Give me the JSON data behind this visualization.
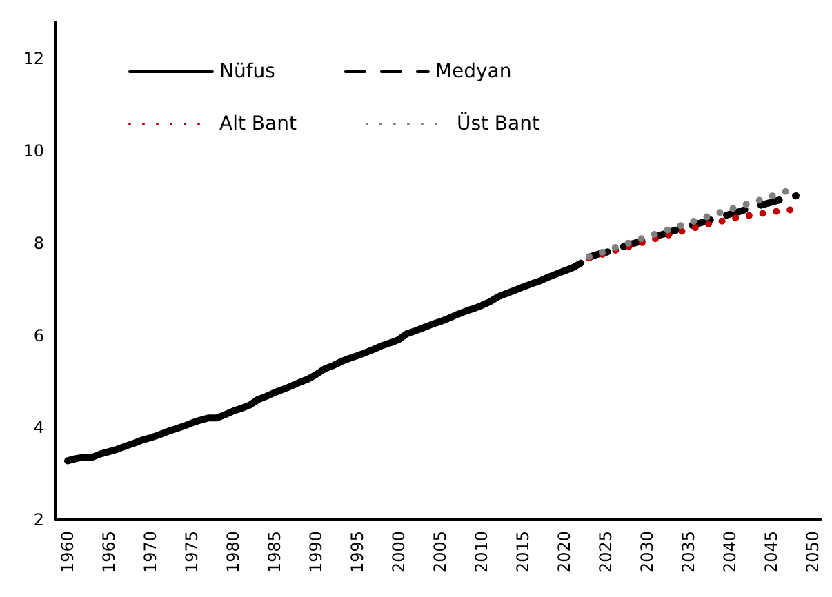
{
  "chart_data": {
    "type": "line",
    "xlim": [
      1958.5,
      2051
    ],
    "xticks": [
      1960,
      1965,
      1970,
      1975,
      1980,
      1985,
      1990,
      1995,
      2000,
      2005,
      2010,
      2015,
      2020,
      2025,
      2030,
      2035,
      2040,
      2045,
      2050
    ],
    "ylim": [
      2,
      12.8
    ],
    "yticks": [
      2,
      4,
      6,
      8,
      10,
      12
    ],
    "grid": false,
    "legend": "top left",
    "marker": "none",
    "series": [
      {
        "name": "Nüfus",
        "color": "#000000",
        "line_style": "solid",
        "x": [
          1960,
          1961,
          1962,
          1963,
          1964,
          1965,
          1966,
          1967,
          1968,
          1969,
          1970,
          1971,
          1972,
          1973,
          1974,
          1975,
          1976,
          1977,
          1978,
          1979,
          1980,
          1981,
          1982,
          1983,
          1984,
          1985,
          1986,
          1987,
          1988,
          1989,
          1990,
          1991,
          1992,
          1993,
          1994,
          1995,
          1996,
          1997,
          1998,
          1999,
          2000,
          2001,
          2002,
          2003,
          2004,
          2005,
          2006,
          2007,
          2008,
          2009,
          2010,
          2011,
          2012,
          2013,
          2014,
          2015,
          2016,
          2017,
          2018,
          2019,
          2020,
          2021,
          2022
        ],
        "values": [
          3.28,
          3.33,
          3.36,
          3.36,
          3.43,
          3.48,
          3.53,
          3.6,
          3.66,
          3.73,
          3.78,
          3.84,
          3.91,
          3.97,
          4.03,
          4.1,
          4.16,
          4.21,
          4.21,
          4.28,
          4.36,
          4.42,
          4.49,
          4.61,
          4.68,
          4.76,
          4.83,
          4.9,
          4.98,
          5.05,
          5.15,
          5.27,
          5.34,
          5.43,
          5.5,
          5.56,
          5.63,
          5.7,
          5.78,
          5.84,
          5.91,
          6.04,
          6.1,
          6.17,
          6.24,
          6.3,
          6.37,
          6.45,
          6.52,
          6.58,
          6.65,
          6.73,
          6.84,
          6.91,
          6.98,
          7.05,
          7.12,
          7.18,
          7.26,
          7.33,
          7.4,
          7.47,
          7.57
        ]
      },
      {
        "name": "Medyan",
        "color": "#000000",
        "line_style": "dashed",
        "x": [
          2023,
          2024,
          2025,
          2026,
          2027,
          2028,
          2029,
          2030,
          2031,
          2032,
          2033,
          2034,
          2035,
          2036,
          2037,
          2038,
          2039,
          2040,
          2041,
          2042,
          2043,
          2044,
          2045,
          2046,
          2047,
          2048
        ],
        "values": [
          7.7,
          7.76,
          7.8,
          7.86,
          7.92,
          7.98,
          8.03,
          8.09,
          8.15,
          8.2,
          8.26,
          8.31,
          8.37,
          8.42,
          8.47,
          8.53,
          8.58,
          8.63,
          8.68,
          8.74,
          8.79,
          8.84,
          8.89,
          8.94,
          8.99,
          9.03
        ]
      },
      {
        "name": "Alt Bant",
        "color": "#c00000",
        "line_style": "dotted",
        "x": [
          2023,
          2024,
          2025,
          2026,
          2027,
          2028,
          2029,
          2030,
          2031,
          2032,
          2033,
          2034,
          2035,
          2036,
          2037,
          2038,
          2039,
          2040,
          2041,
          2042,
          2043,
          2044,
          2045,
          2046,
          2047,
          2048
        ],
        "values": [
          7.68,
          7.73,
          7.78,
          7.84,
          7.89,
          7.94,
          7.99,
          8.05,
          8.1,
          8.15,
          8.2,
          8.25,
          8.3,
          8.35,
          8.4,
          8.44,
          8.48,
          8.52,
          8.56,
          8.59,
          8.62,
          8.65,
          8.68,
          8.7,
          8.72,
          8.74
        ]
      },
      {
        "name": "Üst Bant",
        "color": "#808080",
        "line_style": "dotted",
        "x": [
          2023,
          2024,
          2025,
          2026,
          2027,
          2028,
          2029,
          2030,
          2031,
          2032,
          2033,
          2034,
          2035,
          2036,
          2037,
          2038,
          2039,
          2040,
          2041,
          2042,
          2043,
          2044,
          2045,
          2046,
          2047,
          2048
        ],
        "values": [
          7.71,
          7.77,
          7.83,
          7.9,
          7.96,
          8.02,
          8.08,
          8.14,
          8.2,
          8.26,
          8.32,
          8.38,
          8.44,
          8.5,
          8.56,
          8.62,
          8.68,
          8.74,
          8.79,
          8.85,
          8.9,
          8.96,
          9.02,
          9.08,
          9.14,
          9.2
        ]
      }
    ]
  }
}
